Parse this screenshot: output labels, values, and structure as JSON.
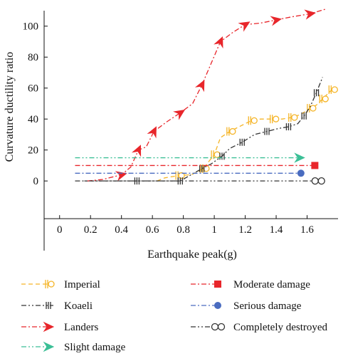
{
  "chart_data": {
    "type": "line",
    "xlabel": "Earthquake peak(g)",
    "ylabel": "Curvature ductility ratio",
    "xlim": [
      -0.1,
      1.8
    ],
    "ylim": [
      -45,
      110
    ],
    "x_ticks": [
      0,
      0.2,
      0.4,
      0.6,
      0.8,
      1.0,
      1.2,
      1.4,
      1.6
    ],
    "x_tick_labels": [
      "0",
      "0.2",
      "0.4",
      "0.6",
      "0.8",
      "1",
      "1.2",
      "1.4",
      "1.6"
    ],
    "y_ticks": [
      0,
      20,
      40,
      60,
      80,
      100
    ],
    "y_tick_labels": [
      "0",
      "20",
      "40",
      "60",
      "80",
      "100"
    ],
    "grid": false,
    "legend_position": "bottom",
    "series": [
      {
        "name": "Imperial",
        "color": "#f5b528",
        "dash": "dash",
        "marker": "bar-circle",
        "x": [
          0.63,
          0.68,
          0.77,
          0.85,
          0.93,
          0.96,
          1.0,
          1.04,
          1.1,
          1.16,
          1.24,
          1.3,
          1.38,
          1.44,
          1.5,
          1.56,
          1.62,
          1.66,
          1.7,
          1.74,
          1.76
        ],
        "y": [
          0,
          2,
          3.5,
          4,
          8,
          12,
          17,
          28,
          32,
          35,
          39,
          40,
          40,
          40,
          41,
          43,
          47,
          49,
          53,
          57,
          59
        ]
      },
      {
        "name": "Koaeli",
        "color": "#333333",
        "dash": "dashdotdot",
        "marker": "triple-bar",
        "x": [
          0.16,
          0.35,
          0.5,
          0.65,
          0.78,
          0.85,
          0.92,
          0.98,
          1.05,
          1.1,
          1.18,
          1.26,
          1.34,
          1.42,
          1.48,
          1.54,
          1.58,
          1.62,
          1.66,
          1.7
        ],
        "y": [
          0,
          0,
          0,
          0,
          0,
          4,
          8,
          11,
          16,
          21,
          25,
          30,
          32,
          34,
          35,
          37,
          42,
          48,
          57,
          67
        ]
      },
      {
        "name": "Landers",
        "color": "#e8262b",
        "dash": "dashdot",
        "marker": "arrow",
        "x": [
          0.18,
          0.28,
          0.4,
          0.46,
          0.51,
          0.56,
          0.61,
          0.69,
          0.78,
          0.86,
          0.92,
          0.98,
          1.04,
          1.12,
          1.2,
          1.3,
          1.4,
          1.5,
          1.62,
          1.72
        ],
        "y": [
          0,
          1,
          4,
          9,
          20,
          22,
          32,
          38,
          44,
          50,
          62,
          76,
          90,
          96,
          101,
          102,
          104,
          106,
          108,
          111
        ]
      },
      {
        "name": "Slight damage",
        "color": "#3bbf96",
        "dash": "dashdotdot",
        "marker": "arrow",
        "x": [
          0.1,
          1.55
        ],
        "y": [
          15,
          15
        ]
      },
      {
        "name": "Moderate damage",
        "color": "#e8262b",
        "dash": "dashdot",
        "marker": "square",
        "x": [
          0.1,
          1.65
        ],
        "y": [
          10,
          10
        ]
      },
      {
        "name": "Serious damage",
        "color": "#4a6cc0",
        "dash": "dashdot",
        "marker": "circle",
        "x": [
          0.1,
          1.56
        ],
        "y": [
          5,
          5
        ]
      },
      {
        "name": "Completely destroyed",
        "color": "#333333",
        "dash": "dashdotdot",
        "marker": "double-circle",
        "x": [
          0.1,
          1.67
        ],
        "y": [
          0,
          0
        ]
      }
    ]
  }
}
